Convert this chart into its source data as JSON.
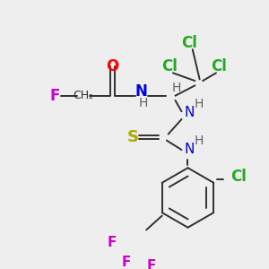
{
  "background_color": "#eeeeee",
  "figsize": [
    3.0,
    3.0
  ],
  "dpi": 100,
  "bond_color": "#303030",
  "bond_lw": 1.4,
  "atoms": {
    "F": {
      "color": "#cc00cc"
    },
    "O": {
      "color": "#ff0000"
    },
    "N": {
      "color": "#0000dd"
    },
    "Cl": {
      "color": "#22aa22"
    },
    "S": {
      "color": "#aaaa00"
    },
    "CF3_F": {
      "color": "#cc00cc"
    },
    "H": {
      "color": "#606060"
    },
    "C": {
      "color": "#303030"
    }
  }
}
